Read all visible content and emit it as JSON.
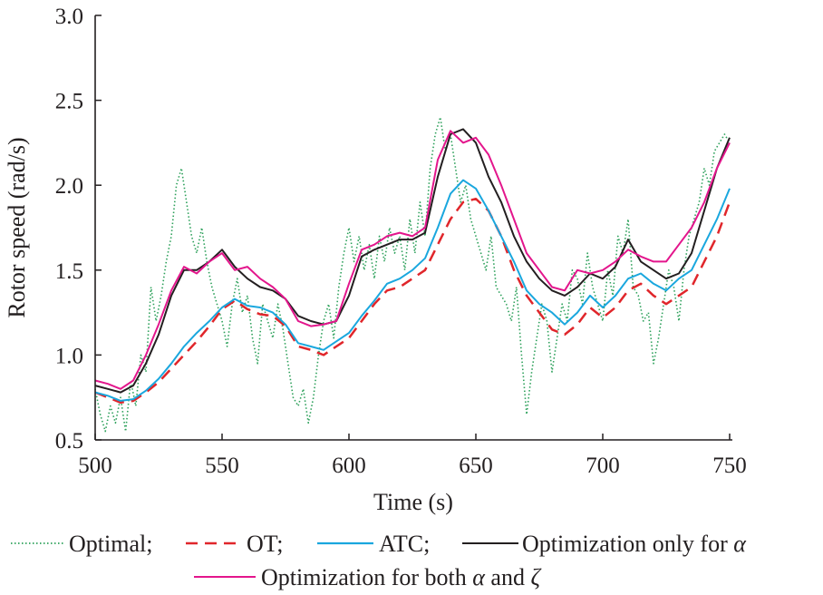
{
  "chart_data": {
    "type": "line",
    "xlabel": "Time (s)",
    "ylabel": "Rotor speed (rad/s)",
    "xlim": [
      500,
      750
    ],
    "ylim": [
      0.5,
      3.0
    ],
    "xticks": [
      "500",
      "550",
      "600",
      "650",
      "700",
      "750"
    ],
    "yticks": [
      "0.5",
      "1.0",
      "1.5",
      "2.0",
      "2.5",
      "3.0"
    ],
    "grid": false,
    "legend_position": "bottom",
    "legend": [
      {
        "label": "Optimal;",
        "series": 0
      },
      {
        "label": "OT;",
        "series": 1
      },
      {
        "label": "ATC;",
        "series": 2
      },
      {
        "label_prefix": "Optimization only for ",
        "label_greek": "α",
        "series": 3
      },
      {
        "label_prefix": "Optimization for both ",
        "label_greek": "α",
        "label_mid": " and ",
        "label_greek2": "ζ",
        "series": 4
      }
    ],
    "series": [
      {
        "name": "Optimal",
        "color": "#2ca05a",
        "dash": "1.5,2.5",
        "x": [
          500,
          502,
          504,
          506,
          508,
          510,
          512,
          514,
          516,
          518,
          520,
          522,
          524,
          526,
          528,
          530,
          532,
          534,
          536,
          538,
          540,
          542,
          544,
          546,
          548,
          550,
          552,
          554,
          556,
          558,
          560,
          562,
          564,
          566,
          568,
          570,
          572,
          574,
          576,
          578,
          580,
          582,
          584,
          586,
          588,
          590,
          592,
          594,
          596,
          598,
          600,
          602,
          604,
          606,
          608,
          610,
          612,
          614,
          616,
          618,
          620,
          622,
          624,
          626,
          628,
          630,
          632,
          634,
          636,
          638,
          640,
          642,
          644,
          646,
          648,
          650,
          652,
          654,
          656,
          658,
          660,
          662,
          664,
          666,
          668,
          670,
          672,
          674,
          676,
          678,
          680,
          682,
          684,
          686,
          688,
          690,
          692,
          694,
          696,
          698,
          700,
          702,
          704,
          706,
          708,
          710,
          712,
          714,
          716,
          718,
          720,
          722,
          724,
          726,
          728,
          730,
          732,
          734,
          736,
          738,
          740,
          742,
          744,
          746,
          748,
          750
        ],
        "y": [
          0.8,
          0.65,
          0.55,
          0.7,
          0.6,
          0.75,
          0.55,
          0.85,
          0.7,
          1.0,
          0.9,
          1.4,
          1.2,
          1.35,
          1.55,
          1.7,
          2.0,
          2.1,
          1.9,
          1.7,
          1.6,
          1.75,
          1.55,
          1.4,
          1.3,
          1.2,
          1.05,
          1.3,
          1.45,
          1.25,
          1.35,
          1.1,
          0.95,
          1.3,
          1.2,
          1.1,
          1.3,
          1.15,
          0.95,
          0.75,
          0.7,
          0.8,
          0.6,
          0.75,
          1.0,
          1.2,
          1.3,
          1.1,
          1.4,
          1.6,
          1.75,
          1.55,
          1.7,
          1.5,
          1.65,
          1.45,
          1.7,
          1.55,
          1.75,
          1.6,
          1.7,
          1.5,
          1.8,
          1.6,
          1.9,
          1.7,
          2.1,
          2.3,
          2.4,
          2.2,
          2.3,
          2.1,
          1.9,
          2.0,
          1.8,
          1.7,
          1.6,
          1.5,
          1.7,
          1.4,
          1.35,
          1.3,
          1.2,
          1.4,
          1.0,
          0.65,
          0.9,
          1.1,
          1.3,
          1.2,
          0.9,
          1.1,
          1.3,
          1.2,
          1.5,
          1.45,
          1.3,
          1.6,
          1.4,
          1.3,
          1.2,
          1.5,
          1.35,
          1.7,
          1.6,
          1.8,
          1.4,
          1.35,
          1.2,
          1.25,
          0.95,
          1.1,
          1.3,
          1.5,
          1.4,
          1.2,
          1.5,
          1.7,
          1.8,
          1.9,
          2.1,
          2.0,
          2.2,
          2.25,
          2.3,
          2.25
        ]
      },
      {
        "name": "OT",
        "color": "#e0262b",
        "dash": "13,8",
        "x": [
          500,
          505,
          510,
          515,
          520,
          525,
          530,
          535,
          540,
          545,
          550,
          555,
          560,
          565,
          570,
          575,
          580,
          585,
          590,
          595,
          600,
          605,
          610,
          615,
          620,
          625,
          630,
          635,
          640,
          645,
          650,
          655,
          660,
          665,
          670,
          675,
          680,
          685,
          690,
          695,
          700,
          705,
          710,
          715,
          720,
          725,
          730,
          735,
          740,
          745,
          750
        ],
        "y": [
          0.78,
          0.75,
          0.72,
          0.73,
          0.78,
          0.84,
          0.92,
          1.0,
          1.08,
          1.17,
          1.27,
          1.32,
          1.27,
          1.24,
          1.23,
          1.17,
          1.05,
          1.03,
          1.0,
          1.05,
          1.1,
          1.2,
          1.3,
          1.38,
          1.4,
          1.45,
          1.5,
          1.65,
          1.8,
          1.9,
          1.92,
          1.85,
          1.7,
          1.5,
          1.35,
          1.25,
          1.15,
          1.12,
          1.18,
          1.28,
          1.22,
          1.28,
          1.38,
          1.42,
          1.35,
          1.3,
          1.35,
          1.4,
          1.55,
          1.7,
          1.9
        ]
      },
      {
        "name": "ATC",
        "color": "#1aa7de",
        "dash": "",
        "x": [
          500,
          505,
          510,
          515,
          520,
          525,
          530,
          535,
          540,
          545,
          550,
          555,
          560,
          565,
          570,
          575,
          580,
          585,
          590,
          595,
          600,
          605,
          610,
          615,
          620,
          625,
          630,
          635,
          640,
          645,
          650,
          655,
          660,
          665,
          670,
          675,
          680,
          685,
          690,
          695,
          700,
          705,
          710,
          715,
          720,
          725,
          730,
          735,
          740,
          745,
          750
        ],
        "y": [
          0.78,
          0.76,
          0.73,
          0.74,
          0.79,
          0.86,
          0.95,
          1.05,
          1.13,
          1.2,
          1.28,
          1.33,
          1.29,
          1.28,
          1.25,
          1.18,
          1.07,
          1.05,
          1.03,
          1.08,
          1.13,
          1.23,
          1.32,
          1.42,
          1.45,
          1.5,
          1.57,
          1.75,
          1.95,
          2.03,
          1.98,
          1.85,
          1.7,
          1.55,
          1.38,
          1.3,
          1.25,
          1.18,
          1.25,
          1.35,
          1.28,
          1.35,
          1.45,
          1.48,
          1.42,
          1.38,
          1.45,
          1.5,
          1.65,
          1.8,
          1.98
        ]
      },
      {
        "name": "Optimization only for α",
        "color": "#231f20",
        "dash": "",
        "x": [
          500,
          505,
          510,
          515,
          520,
          525,
          530,
          535,
          540,
          545,
          550,
          555,
          560,
          565,
          570,
          575,
          580,
          585,
          590,
          595,
          600,
          605,
          610,
          615,
          620,
          625,
          630,
          635,
          640,
          645,
          650,
          655,
          660,
          665,
          670,
          675,
          680,
          685,
          690,
          695,
          700,
          705,
          710,
          715,
          720,
          725,
          730,
          735,
          740,
          745,
          750
        ],
        "y": [
          0.82,
          0.8,
          0.78,
          0.82,
          0.95,
          1.12,
          1.35,
          1.5,
          1.5,
          1.55,
          1.62,
          1.52,
          1.45,
          1.4,
          1.38,
          1.33,
          1.23,
          1.2,
          1.18,
          1.2,
          1.35,
          1.58,
          1.62,
          1.65,
          1.68,
          1.68,
          1.72,
          2.05,
          2.3,
          2.33,
          2.25,
          2.05,
          1.9,
          1.7,
          1.55,
          1.45,
          1.38,
          1.35,
          1.4,
          1.48,
          1.45,
          1.52,
          1.68,
          1.55,
          1.5,
          1.45,
          1.48,
          1.6,
          1.85,
          2.1,
          2.28
        ]
      },
      {
        "name": "Optimization for both α and ζ",
        "color": "#e3168c",
        "dash": "",
        "x": [
          500,
          505,
          510,
          515,
          520,
          525,
          530,
          535,
          540,
          545,
          550,
          555,
          560,
          565,
          570,
          575,
          580,
          585,
          590,
          595,
          600,
          605,
          610,
          615,
          620,
          625,
          630,
          635,
          640,
          645,
          650,
          655,
          660,
          665,
          670,
          675,
          680,
          685,
          690,
          695,
          700,
          705,
          710,
          715,
          720,
          725,
          730,
          735,
          740,
          745,
          750
        ],
        "y": [
          0.85,
          0.83,
          0.8,
          0.85,
          1.0,
          1.18,
          1.38,
          1.52,
          1.48,
          1.55,
          1.6,
          1.5,
          1.52,
          1.45,
          1.4,
          1.33,
          1.2,
          1.17,
          1.18,
          1.2,
          1.42,
          1.62,
          1.65,
          1.7,
          1.72,
          1.7,
          1.75,
          2.15,
          2.32,
          2.25,
          2.28,
          2.18,
          2.0,
          1.8,
          1.6,
          1.5,
          1.4,
          1.38,
          1.5,
          1.48,
          1.5,
          1.55,
          1.62,
          1.58,
          1.55,
          1.55,
          1.65,
          1.75,
          1.9,
          2.1,
          2.25
        ]
      }
    ]
  }
}
